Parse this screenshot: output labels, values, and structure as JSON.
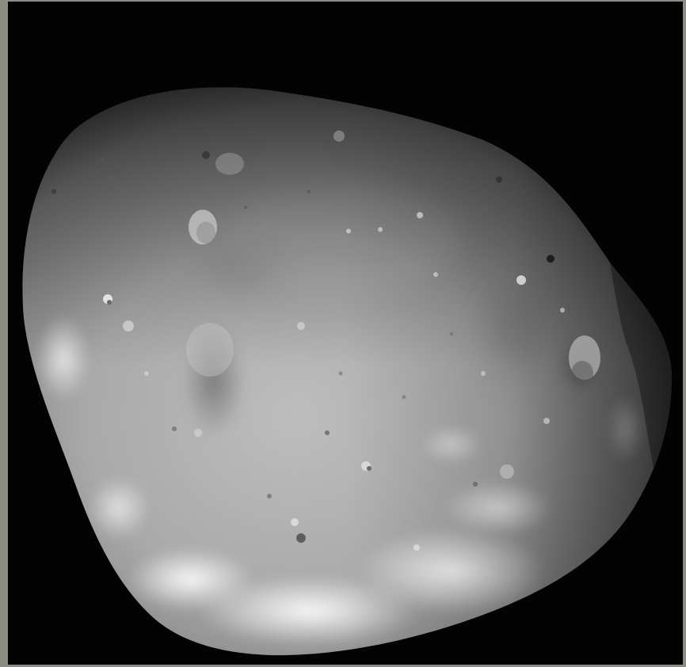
{
  "image": {
    "subject": "deimos-moon",
    "colors": {
      "border": "#8a8d82",
      "space": "#030303",
      "surface_light": "#c9c9c9",
      "surface_mid": "#9a9a9a",
      "surface_dark": "#4a4a4a",
      "highlight": "#f2f2f2"
    }
  }
}
